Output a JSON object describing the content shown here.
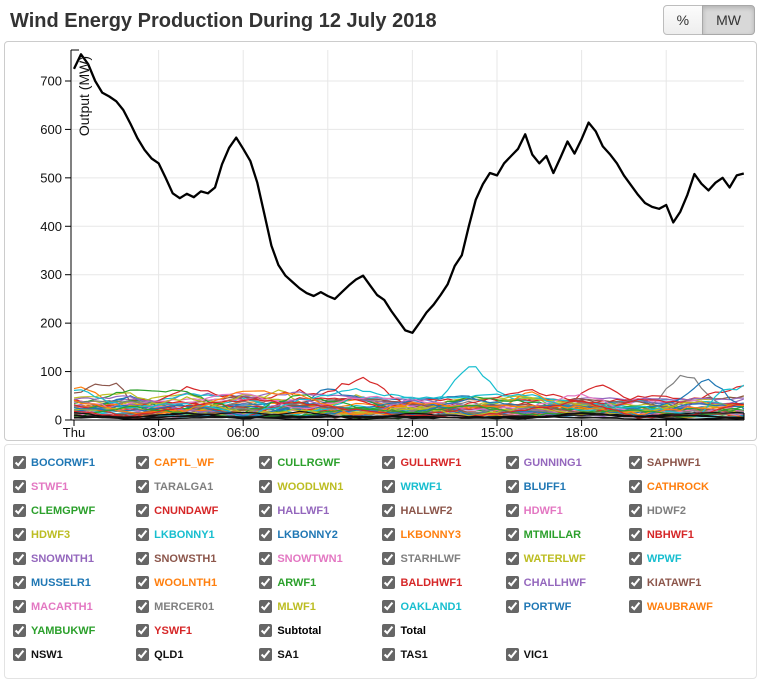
{
  "header": {
    "title": "Wind Energy Production During 12 July 2018",
    "unit_buttons": [
      {
        "label": "%",
        "active": false
      },
      {
        "label": "MW",
        "active": true
      }
    ]
  },
  "chart_data": {
    "type": "line",
    "title": "Wind Energy Production During 12 July 2018",
    "xlabel": "",
    "ylabel": "Output (MW)",
    "ylim": [
      0,
      765
    ],
    "xlim_hours": [
      0,
      23.75
    ],
    "grid": true,
    "legend_position": "below-as-checkboxes",
    "y_ticks": [
      0,
      100,
      200,
      300,
      400,
      500,
      600,
      700
    ],
    "x_ticks": [
      {
        "hour": 0,
        "label": "Thu"
      },
      {
        "hour": 3,
        "label": "03:00"
      },
      {
        "hour": 6,
        "label": "06:00"
      },
      {
        "hour": 9,
        "label": "09:00"
      },
      {
        "hour": 12,
        "label": "12:00"
      },
      {
        "hour": 15,
        "label": "15:00"
      },
      {
        "hour": 18,
        "label": "18:00"
      },
      {
        "hour": 21,
        "label": "21:00"
      }
    ],
    "total_series": {
      "name": "Total",
      "color": "#000000",
      "x_start_hour": 0,
      "x_step_hours": 0.25,
      "values": [
        725,
        755,
        735,
        700,
        676,
        668,
        658,
        640,
        612,
        582,
        558,
        540,
        530,
        500,
        468,
        458,
        467,
        460,
        472,
        468,
        480,
        528,
        562,
        583,
        560,
        535,
        490,
        425,
        360,
        320,
        298,
        285,
        272,
        262,
        256,
        264,
        256,
        250,
        264,
        278,
        290,
        298,
        278,
        258,
        248,
        225,
        205,
        185,
        180,
        200,
        222,
        238,
        258,
        280,
        318,
        340,
        400,
        455,
        487,
        510,
        505,
        530,
        545,
        560,
        590,
        548,
        530,
        545,
        510,
        542,
        575,
        550,
        580,
        614,
        596,
        565,
        549,
        530,
        505,
        485,
        465,
        448,
        440,
        436,
        444,
        408,
        430,
        465,
        508,
        488,
        474,
        490,
        500,
        480,
        505,
        509
      ]
    },
    "farm_series": [
      {
        "name": "BOCORWF1",
        "color": "#1f77b4",
        "peak_mw": 50
      },
      {
        "name": "CAPTL_WF",
        "color": "#ff7f0e",
        "peak_mw": 68,
        "bump_hour": 0.5
      },
      {
        "name": "CULLRGWF",
        "color": "#2ca02c",
        "peak_mw": 30
      },
      {
        "name": "GULLRWF1",
        "color": "#d62728",
        "peak_mw": 72,
        "bump_hour": 18.5
      },
      {
        "name": "GUNNING1",
        "color": "#9467bd",
        "peak_mw": 46
      },
      {
        "name": "SAPHWF1",
        "color": "#8c564b",
        "peak_mw": 76,
        "bump_hour": 1.5
      },
      {
        "name": "STWF1",
        "color": "#e377c2",
        "peak_mw": 48
      },
      {
        "name": "TARALGA1",
        "color": "#7f7f7f",
        "peak_mw": 92,
        "bump_hour": 21.5
      },
      {
        "name": "WOODLWN1",
        "color": "#bcbd22",
        "peak_mw": 62,
        "bump_hour": 7
      },
      {
        "name": "WRWF1",
        "color": "#17becf",
        "peak_mw": 110,
        "bump_hour": 14
      },
      {
        "name": "BLUFF1",
        "color": "#1f77b4",
        "peak_mw": 40
      },
      {
        "name": "CATHROCK",
        "color": "#ff7f0e",
        "peak_mw": 34
      },
      {
        "name": "CLEMGPWF",
        "color": "#2ca02c",
        "peak_mw": 26
      },
      {
        "name": "CNUNDAWF",
        "color": "#d62728",
        "peak_mw": 44
      },
      {
        "name": "HALLWF1",
        "color": "#9467bd",
        "peak_mw": 56
      },
      {
        "name": "HALLWF2",
        "color": "#8c564b",
        "peak_mw": 50
      },
      {
        "name": "HDWF1",
        "color": "#e377c2",
        "peak_mw": 44
      },
      {
        "name": "HDWF2",
        "color": "#7f7f7f",
        "peak_mw": 40
      },
      {
        "name": "HDWF3",
        "color": "#bcbd22",
        "peak_mw": 52
      },
      {
        "name": "LKBONNY1",
        "color": "#17becf",
        "peak_mw": 54
      },
      {
        "name": "LKBONNY2",
        "color": "#1f77b4",
        "peak_mw": 64,
        "bump_hour": 8.5
      },
      {
        "name": "LKBONNY3",
        "color": "#ff7f0e",
        "peak_mw": 36
      },
      {
        "name": "MTMILLAR",
        "color": "#2ca02c",
        "peak_mw": 46
      },
      {
        "name": "NBHWF1",
        "color": "#d62728",
        "peak_mw": 88,
        "bump_hour": 10.3
      },
      {
        "name": "SNOWNTH1",
        "color": "#9467bd",
        "peak_mw": 58
      },
      {
        "name": "SNOWSTH1",
        "color": "#8c564b",
        "peak_mw": 48
      },
      {
        "name": "SNOWTWN1",
        "color": "#e377c2",
        "peak_mw": 44
      },
      {
        "name": "STARHLWF",
        "color": "#7f7f7f",
        "peak_mw": 36
      },
      {
        "name": "WATERLWF",
        "color": "#bcbd22",
        "peak_mw": 56
      },
      {
        "name": "WPWF",
        "color": "#17becf",
        "peak_mw": 30
      },
      {
        "name": "MUSSELR1",
        "color": "#1f77b4",
        "peak_mw": 84,
        "bump_hour": 22.8
      },
      {
        "name": "WOOLNTH1",
        "color": "#ff7f0e",
        "peak_mw": 58,
        "bump_hour": 16
      },
      {
        "name": "ARWF1",
        "color": "#2ca02c",
        "peak_mw": 62
      },
      {
        "name": "BALDHWF1",
        "color": "#d62728",
        "peak_mw": 46
      },
      {
        "name": "CHALLHWF",
        "color": "#9467bd",
        "peak_mw": 50
      },
      {
        "name": "KIATAWF1",
        "color": "#8c564b",
        "peak_mw": 32
      },
      {
        "name": "MACARTH1",
        "color": "#e377c2",
        "peak_mw": 56
      },
      {
        "name": "MERCER01",
        "color": "#7f7f7f",
        "peak_mw": 40
      },
      {
        "name": "MLWF1",
        "color": "#bcbd22",
        "peak_mw": 48
      },
      {
        "name": "OAKLAND1",
        "color": "#17becf",
        "peak_mw": 72,
        "bump_hour": 23.2
      },
      {
        "name": "PORTWF",
        "color": "#1f77b4",
        "peak_mw": 44
      },
      {
        "name": "WAUBRAWF",
        "color": "#ff7f0e",
        "peak_mw": 60
      },
      {
        "name": "YAMBUKWF",
        "color": "#2ca02c",
        "peak_mw": 30
      },
      {
        "name": "YSWF1",
        "color": "#d62728",
        "peak_mw": 42
      },
      {
        "name": "NSW1",
        "color": "#111111",
        "peak_mw": 14
      },
      {
        "name": "QLD1",
        "color": "#111111",
        "peak_mw": 10
      },
      {
        "name": "SA1",
        "color": "#111111",
        "peak_mw": 18
      },
      {
        "name": "TAS1",
        "color": "#111111",
        "peak_mw": 8
      },
      {
        "name": "VIC1",
        "color": "#111111",
        "peak_mw": 16
      }
    ]
  },
  "legend": {
    "rows": [
      [
        {
          "label": "BOCORWF1",
          "color": "#1f77b4",
          "checked": true
        },
        {
          "label": "CAPTL_WF",
          "color": "#ff7f0e",
          "checked": true
        },
        {
          "label": "CULLRGWF",
          "color": "#2ca02c",
          "checked": true
        },
        {
          "label": "GULLRWF1",
          "color": "#d62728",
          "checked": true
        },
        {
          "label": "GUNNING1",
          "color": "#9467bd",
          "checked": true
        },
        {
          "label": "SAPHWF1",
          "color": "#8c564b",
          "checked": true
        }
      ],
      [
        {
          "label": "STWF1",
          "color": "#e377c2",
          "checked": true
        },
        {
          "label": "TARALGA1",
          "color": "#7f7f7f",
          "checked": true
        },
        {
          "label": "WOODLWN1",
          "color": "#bcbd22",
          "checked": true
        },
        {
          "label": "WRWF1",
          "color": "#17becf",
          "checked": true
        },
        {
          "label": "BLUFF1",
          "color": "#1f77b4",
          "checked": true
        },
        {
          "label": "CATHROCK",
          "color": "#ff7f0e",
          "checked": true
        }
      ],
      [
        {
          "label": "CLEMGPWF",
          "color": "#2ca02c",
          "checked": true
        },
        {
          "label": "CNUNDAWF",
          "color": "#d62728",
          "checked": true
        },
        {
          "label": "HALLWF1",
          "color": "#9467bd",
          "checked": true
        },
        {
          "label": "HALLWF2",
          "color": "#8c564b",
          "checked": true
        },
        {
          "label": "HDWF1",
          "color": "#e377c2",
          "checked": true
        },
        {
          "label": "HDWF2",
          "color": "#7f7f7f",
          "checked": true
        }
      ],
      [
        {
          "label": "HDWF3",
          "color": "#bcbd22",
          "checked": true
        },
        {
          "label": "LKBONNY1",
          "color": "#17becf",
          "checked": true
        },
        {
          "label": "LKBONNY2",
          "color": "#1f77b4",
          "checked": true
        },
        {
          "label": "LKBONNY3",
          "color": "#ff7f0e",
          "checked": true
        },
        {
          "label": "MTMILLAR",
          "color": "#2ca02c",
          "checked": true
        },
        {
          "label": "NBHWF1",
          "color": "#d62728",
          "checked": true
        }
      ],
      [
        {
          "label": "SNOWNTH1",
          "color": "#9467bd",
          "checked": true
        },
        {
          "label": "SNOWSTH1",
          "color": "#8c564b",
          "checked": true
        },
        {
          "label": "SNOWTWN1",
          "color": "#e377c2",
          "checked": true
        },
        {
          "label": "STARHLWF",
          "color": "#7f7f7f",
          "checked": true
        },
        {
          "label": "WATERLWF",
          "color": "#bcbd22",
          "checked": true
        },
        {
          "label": "WPWF",
          "color": "#17becf",
          "checked": true
        }
      ],
      [
        {
          "label": "MUSSELR1",
          "color": "#1f77b4",
          "checked": true
        },
        {
          "label": "WOOLNTH1",
          "color": "#ff7f0e",
          "checked": true
        },
        {
          "label": "ARWF1",
          "color": "#2ca02c",
          "checked": true
        },
        {
          "label": "BALDHWF1",
          "color": "#d62728",
          "checked": true
        },
        {
          "label": "CHALLHWF",
          "color": "#9467bd",
          "checked": true
        },
        {
          "label": "KIATAWF1",
          "color": "#8c564b",
          "checked": true
        }
      ],
      [
        {
          "label": "MACARTH1",
          "color": "#e377c2",
          "checked": true
        },
        {
          "label": "MERCER01",
          "color": "#7f7f7f",
          "checked": true
        },
        {
          "label": "MLWF1",
          "color": "#bcbd22",
          "checked": true
        },
        {
          "label": "OAKLAND1",
          "color": "#17becf",
          "checked": true
        },
        {
          "label": "PORTWF",
          "color": "#1f77b4",
          "checked": true
        },
        {
          "label": "WAUBRAWF",
          "color": "#ff7f0e",
          "checked": true
        }
      ],
      [
        {
          "label": "YAMBUKWF",
          "color": "#2ca02c",
          "checked": true
        },
        {
          "label": "YSWF1",
          "color": "#d62728",
          "checked": true
        },
        {
          "label": "Subtotal",
          "color": "#000000",
          "checked": true
        },
        {
          "label": "Total",
          "color": "#000000",
          "checked": true
        }
      ],
      [
        {
          "label": "NSW1",
          "color": "#111111",
          "checked": true
        },
        {
          "label": "QLD1",
          "color": "#111111",
          "checked": true
        },
        {
          "label": "SA1",
          "color": "#111111",
          "checked": true
        },
        {
          "label": "TAS1",
          "color": "#111111",
          "checked": true
        },
        {
          "label": "VIC1",
          "color": "#111111",
          "checked": true
        }
      ]
    ]
  }
}
